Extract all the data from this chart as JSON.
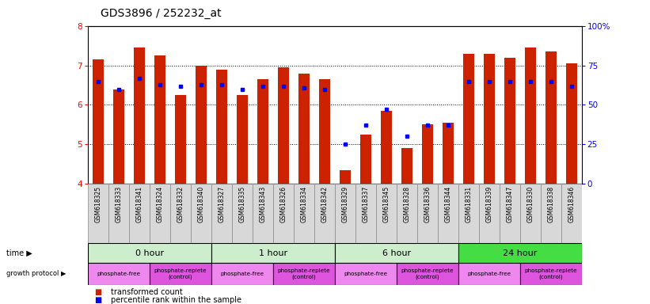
{
  "title": "GDS3896 / 252232_at",
  "samples": [
    "GSM618325",
    "GSM618333",
    "GSM618341",
    "GSM618324",
    "GSM618332",
    "GSM618340",
    "GSM618327",
    "GSM618335",
    "GSM618343",
    "GSM618326",
    "GSM618334",
    "GSM618342",
    "GSM618329",
    "GSM618337",
    "GSM618345",
    "GSM618328",
    "GSM618336",
    "GSM618344",
    "GSM618331",
    "GSM618339",
    "GSM618347",
    "GSM618330",
    "GSM618338",
    "GSM618346"
  ],
  "transformed_count": [
    7.15,
    6.4,
    7.45,
    7.25,
    6.25,
    7.0,
    6.9,
    6.25,
    6.65,
    6.95,
    6.8,
    6.65,
    4.35,
    5.25,
    5.85,
    4.9,
    5.5,
    5.55,
    7.3,
    7.3,
    7.2,
    7.45,
    7.35,
    7.05
  ],
  "percentile_rank": [
    65,
    60,
    67,
    63,
    62,
    63,
    63,
    60,
    62,
    62,
    61,
    60,
    25,
    37,
    47,
    30,
    37,
    37,
    65,
    65,
    65,
    65,
    65,
    62
  ],
  "time_groups": [
    {
      "label": "0 hour",
      "start": 0,
      "end": 6,
      "color": "#cceecc"
    },
    {
      "label": "1 hour",
      "start": 6,
      "end": 12,
      "color": "#cceecc"
    },
    {
      "label": "6 hour",
      "start": 12,
      "end": 18,
      "color": "#cceecc"
    },
    {
      "label": "24 hour",
      "start": 18,
      "end": 24,
      "color": "#44dd44"
    }
  ],
  "protocol_groups": [
    {
      "label": "phosphate-free",
      "start": 0,
      "end": 3,
      "color": "#ee88ee"
    },
    {
      "label": "phosphate-replete\n(control)",
      "start": 3,
      "end": 6,
      "color": "#dd55dd"
    },
    {
      "label": "phosphate-free",
      "start": 6,
      "end": 9,
      "color": "#ee88ee"
    },
    {
      "label": "phosphate-replete\n(control)",
      "start": 9,
      "end": 12,
      "color": "#dd55dd"
    },
    {
      "label": "phosphate-free",
      "start": 12,
      "end": 15,
      "color": "#ee88ee"
    },
    {
      "label": "phosphate-replete\n(control)",
      "start": 15,
      "end": 18,
      "color": "#dd55dd"
    },
    {
      "label": "phosphate-free",
      "start": 18,
      "end": 21,
      "color": "#ee88ee"
    },
    {
      "label": "phosphate-replete\n(control)",
      "start": 21,
      "end": 24,
      "color": "#dd55dd"
    }
  ],
  "ylim": [
    4.0,
    8.0
  ],
  "yticks": [
    4,
    5,
    6,
    7,
    8
  ],
  "right_yticks": [
    0,
    25,
    50,
    75,
    100
  ],
  "bar_color": "#cc2200",
  "dot_color": "#0000ee",
  "bg_color": "#ffffff"
}
